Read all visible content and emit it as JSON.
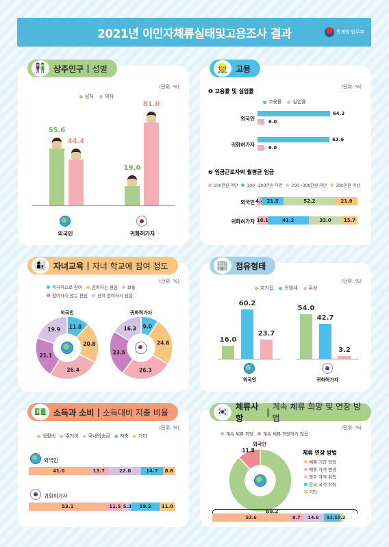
{
  "header": {
    "title": "2021년 이민자체류실태및고용조사 결과",
    "agency": "통계청·법무부"
  },
  "colors": {
    "green": "#a9cf8a",
    "pink": "#f4aeb5",
    "blue": "#4ec0e8",
    "orange": "#f9c47e",
    "purple": "#c880c0",
    "lavender": "#d5c3e3",
    "tan": "#f2d7a2"
  },
  "chart_data": [
    {
      "id": "population",
      "type": "bar",
      "title": "상주인구",
      "subtitle": "성별",
      "unit": "(단위: %)",
      "categories": [
        "외국인",
        "귀화허가자"
      ],
      "series": [
        {
          "name": "남자",
          "values": [
            55.6,
            19.0
          ],
          "color": "#a9cf8a"
        },
        {
          "name": "여자",
          "values": [
            44.4,
            81.0
          ],
          "color": "#f4aeb5"
        }
      ],
      "ylim": [
        0,
        100
      ]
    },
    {
      "id": "employment",
      "type": "bar",
      "title": "고용",
      "unit": "(단위: %)",
      "sections": [
        {
          "heading": "고용률 및 실업률",
          "num": "1",
          "legend": [
            "고용률",
            "실업률"
          ],
          "rows": [
            {
              "label": "외국인",
              "employment": 64.2,
              "unemployment": 6.0
            },
            {
              "label": "귀화허가자",
              "employment": 63.6,
              "unemployment": 6.0
            }
          ]
        },
        {
          "heading": "임금근로자의 월평균 임금",
          "num": "2",
          "legend": [
            "100만원 미만",
            "100~200만원 미만",
            "200~300만원 미만",
            "300만원 이상"
          ],
          "rows": [
            {
              "label": "외국인",
              "values": [
                4.4,
                21.5,
                52.2,
                21.9
              ]
            },
            {
              "label": "귀화허가자",
              "values": [
                10.1,
                41.2,
                33.0,
                15.7
              ]
            }
          ]
        }
      ]
    },
    {
      "id": "education",
      "type": "pie",
      "title": "자녀교육",
      "subtitle": "자녀 학교에 참여 정도",
      "unit": "(단위: %)",
      "legend": [
        "적극적으로 참여",
        "참여하는 편임",
        "보통",
        "참여하지 않는 편임",
        "전혀 참여하지 않음"
      ],
      "charts": [
        {
          "label": "외국인",
          "values": [
            11.8,
            20.8,
            26.4,
            21.1,
            19.9
          ]
        },
        {
          "label": "귀화허가자",
          "values": [
            9.0,
            24.6,
            26.3,
            23.5,
            16.3
          ]
        }
      ]
    },
    {
      "id": "housing",
      "type": "bar",
      "title": "점유형태",
      "unit": "(단위: %)",
      "categories": [
        "외국인",
        "귀화허가자"
      ],
      "series": [
        {
          "name": "자기집",
          "values": [
            16.0,
            54.0
          ],
          "color": "#a9cf8a"
        },
        {
          "name": "전월세",
          "values": [
            60.2,
            42.7
          ],
          "color": "#4ec0e8"
        },
        {
          "name": "무상",
          "values": [
            23.7,
            3.2
          ],
          "color": "#f4aeb5"
        }
      ],
      "ylim": [
        0,
        70
      ]
    },
    {
      "id": "income",
      "type": "bar",
      "title": "소득과 소비",
      "subtitle": "소득대비 지출 비율",
      "unit": "(단위: %)",
      "legend": [
        "생활비",
        "주거비",
        "국내외송금",
        "저축",
        "기타"
      ],
      "rows": [
        {
          "label": "외국인",
          "values": [
            41.0,
            13.7,
            22.0,
            14.7,
            8.6
          ]
        },
        {
          "label": "귀화허가자",
          "values": [
            53.1,
            11.5,
            5.3,
            19.2,
            11.0
          ]
        }
      ]
    },
    {
      "id": "stay",
      "type": "pie",
      "title": "체류사항",
      "subtitle": "계속 체류 희망 및 연장 방법",
      "unit": "(단위: %)",
      "legend": [
        "계속 체류 희망",
        "계속 체류 희망하지 않음"
      ],
      "donut": {
        "label": "외국인",
        "values": [
          88.2,
          11.8
        ]
      },
      "method_title": "체류 연장 방법",
      "method_legend": [
        "체류 기간 연장",
        "체류 자격 변경",
        "영주 자격 취득",
        "한국 국적 취득",
        "기타"
      ],
      "method_values": [
        53.6,
        8.7,
        14.6,
        11.1,
        0.2
      ]
    }
  ]
}
